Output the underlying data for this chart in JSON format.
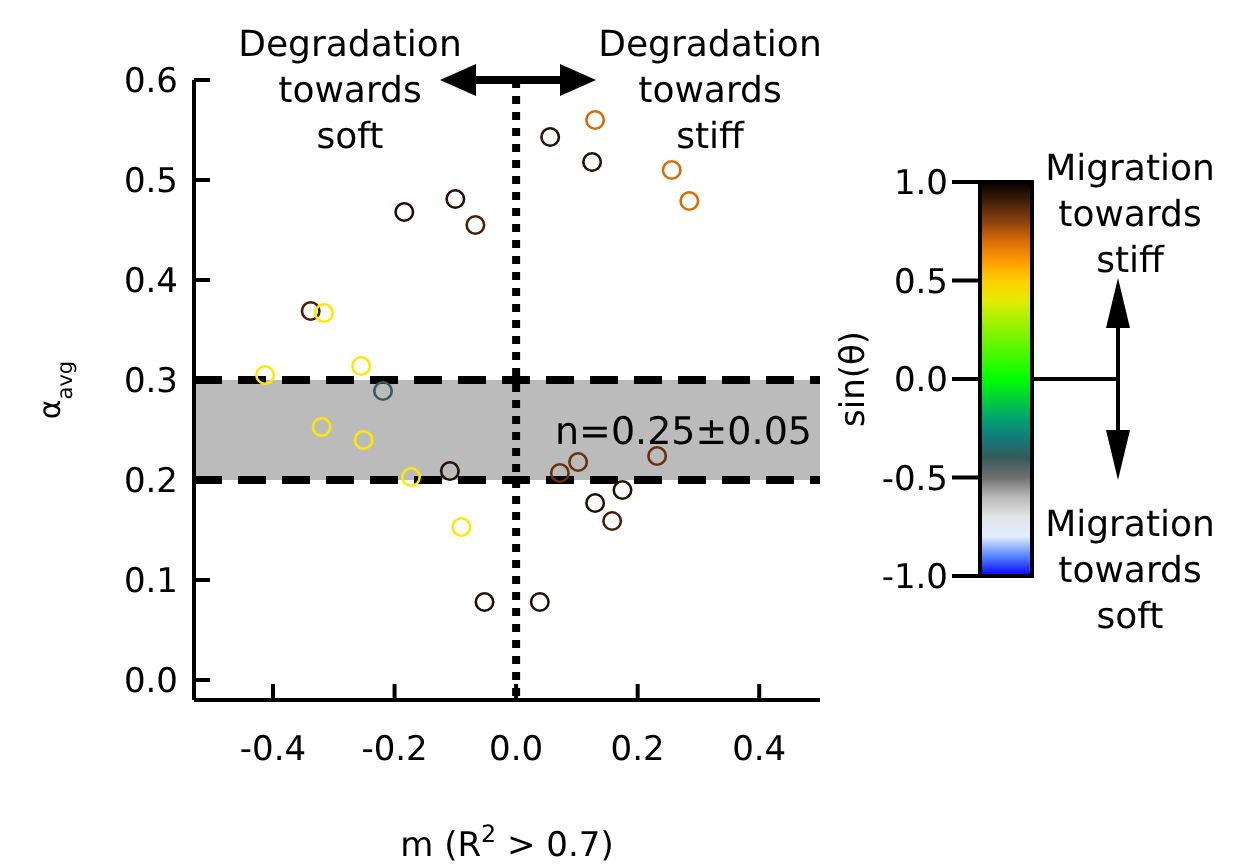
{
  "chart_data": {
    "type": "scatter",
    "xlabel": "m (R$^{2}$ > 0.7)",
    "ylabel": "α$_{avg}$",
    "clabel": "sin(θ)",
    "x": [
      -0.184,
      -0.1,
      -0.067,
      -0.338,
      -0.316,
      -0.413,
      -0.255,
      -0.219,
      -0.32,
      -0.251,
      -0.173,
      -0.109,
      -0.09,
      -0.052,
      0.039,
      0.056,
      0.13,
      0.125,
      0.256,
      0.285,
      0.072,
      0.102,
      0.232,
      0.175,
      0.13,
      0.158
    ],
    "values": [
      0.468,
      0.481,
      0.455,
      0.369,
      0.367,
      0.305,
      0.314,
      0.289,
      0.253,
      0.24,
      0.203,
      0.209,
      0.153,
      0.078,
      0.078,
      0.543,
      0.56,
      0.518,
      0.51,
      0.479,
      0.207,
      0.218,
      0.224,
      0.19,
      0.177,
      0.159
    ],
    "cvalues": [
      0.95,
      0.95,
      0.9,
      0.9,
      0.45,
      0.45,
      0.45,
      -0.4,
      0.45,
      0.45,
      0.45,
      0.95,
      0.45,
      0.95,
      0.95,
      0.95,
      0.7,
      0.95,
      0.7,
      0.7,
      0.85,
      0.85,
      0.85,
      0.95,
      0.95,
      0.9
    ],
    "marker": "circle",
    "xlim": [
      -0.53,
      0.5
    ],
    "xticks": [
      -0.4,
      -0.2,
      {
        "value": 0,
        "label": "0.0"
      },
      0.2,
      0.4
    ],
    "ylim": [
      -0.02,
      0.6
    ],
    "yticks": [
      {
        "value": 0,
        "label": "0.0"
      },
      0.1,
      0.2,
      0.3,
      0.4,
      0.5,
      0.6
    ],
    "clim": [
      -1,
      1
    ],
    "cticks": [
      {
        "value": -1,
        "label": "-1.0"
      },
      -0.5,
      {
        "value": 0,
        "label": "0.0"
      },
      0.5,
      {
        "value": 1,
        "label": "1.0"
      }
    ],
    "ref_lines": [
      {
        "axis": "x",
        "value": 0,
        "line_style": "dotted"
      }
    ],
    "bands": [
      {
        "axis": "y",
        "from": 0.2,
        "to": 0.3,
        "label": "n=0.25±0.05",
        "color": "#bbbbbb"
      }
    ],
    "annotations": [
      "Degradation towards soft",
      "Degradation towards stiff",
      "Migration towards stiff",
      "Migration towards soft"
    ]
  }
}
